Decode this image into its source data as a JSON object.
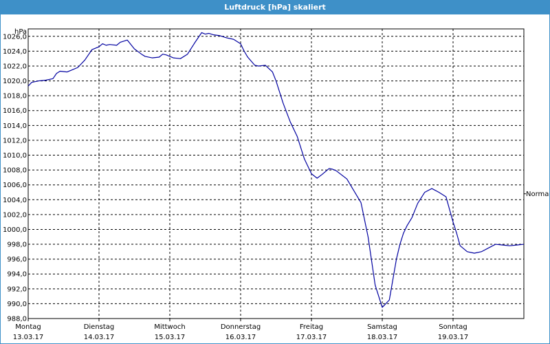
{
  "window": {
    "title": "Luftdruck [hPa] skaliert"
  },
  "colors": {
    "title_bar": "#3e90c8",
    "series_line": "#0000a0",
    "grid": "#000000",
    "background": "#ffffff"
  },
  "chart_data": {
    "type": "line",
    "title": "Luftdruck [hPa] skaliert",
    "ylabel": "hPa",
    "xlabel": "",
    "ylim": [
      988.0,
      1027.0
    ],
    "xlim": [
      0,
      7
    ],
    "y_ticks": [
      1026.0,
      1024.0,
      1022.0,
      1020.0,
      1018.0,
      1016.0,
      1014.0,
      1012.0,
      1010.0,
      1008.0,
      1006.0,
      1004.0,
      1002.0,
      1000.0,
      998.0,
      996.0,
      994.0,
      992.0,
      990.0,
      988.0
    ],
    "y_tick_labels": [
      "1026,0",
      "1024,0",
      "1022,0",
      "1020,0",
      "1018,0",
      "1016,0",
      "1014,0",
      "1012,0",
      "1010,0",
      "1008,0",
      "1006,0",
      "1004,0",
      "1002,0",
      "1000,0",
      "998,0",
      "996,0",
      "994,0",
      "992,0",
      "990,0",
      "988,0"
    ],
    "x_ticks": [
      {
        "day": "Montag",
        "date": "13.03.17"
      },
      {
        "day": "Dienstag",
        "date": "14.03.17"
      },
      {
        "day": "Mittwoch",
        "date": "15.03.17"
      },
      {
        "day": "Donnerstag",
        "date": "16.03.17"
      },
      {
        "day": "Freitag",
        "date": "17.03.17"
      },
      {
        "day": "Samstag",
        "date": "18.03.17"
      },
      {
        "day": "Sonntag",
        "date": "19.03.17"
      }
    ],
    "grid": true,
    "reference_line": {
      "label": "Normal",
      "value": 1004.8
    },
    "series": [
      {
        "x": [
          0.0,
          0.05,
          0.15,
          0.25,
          0.35,
          0.4,
          0.45,
          0.55,
          0.6,
          0.7,
          0.8,
          0.9,
          1.0,
          1.05,
          1.1,
          1.15,
          1.25,
          1.3,
          1.4,
          1.5,
          1.6,
          1.65,
          1.75,
          1.85,
          1.9,
          1.95,
          2.05,
          2.15,
          2.25,
          2.35,
          2.45,
          2.5,
          2.55,
          2.62,
          2.7,
          2.8,
          2.9,
          3.0,
          3.05,
          3.1,
          3.2,
          3.25,
          3.35,
          3.45,
          3.5,
          3.6,
          3.7,
          3.8,
          3.9,
          4.0,
          4.08,
          4.15,
          4.25,
          4.3,
          4.35,
          4.5,
          4.6,
          4.7,
          4.8,
          4.9,
          5.0,
          5.1,
          5.2,
          5.25,
          5.3,
          5.35,
          5.42,
          5.5,
          5.6,
          5.7,
          5.8,
          5.9,
          6.0,
          6.05,
          6.1,
          6.2,
          6.3,
          6.4,
          6.5,
          6.6,
          6.7,
          6.8,
          6.9,
          7.0
        ],
        "y": [
          1019.3,
          1019.8,
          1020.0,
          1020.1,
          1020.3,
          1021.0,
          1021.3,
          1021.2,
          1021.4,
          1021.8,
          1022.8,
          1024.2,
          1024.6,
          1025.0,
          1024.8,
          1024.9,
          1024.8,
          1025.2,
          1025.5,
          1024.3,
          1023.6,
          1023.3,
          1023.1,
          1023.2,
          1023.6,
          1023.5,
          1023.1,
          1023.0,
          1023.6,
          1025.1,
          1026.5,
          1026.3,
          1026.4,
          1026.2,
          1026.1,
          1025.8,
          1025.6,
          1025.0,
          1024.0,
          1023.2,
          1022.1,
          1022.0,
          1022.1,
          1021.2,
          1020.0,
          1017.0,
          1014.5,
          1012.5,
          1009.5,
          1007.5,
          1006.9,
          1007.4,
          1008.2,
          1008.1,
          1007.9,
          1006.8,
          1005.2,
          1003.6,
          999.0,
          992.5,
          989.5,
          990.5,
          996.0,
          998.0,
          999.5,
          1000.5,
          1001.6,
          1003.5,
          1005.0,
          1005.5,
          1005.0,
          1004.4,
          1001.0,
          999.5,
          997.8,
          997.0,
          996.8,
          997.0,
          997.5,
          998.0,
          997.9,
          997.8,
          997.9,
          998.0
        ]
      }
    ]
  }
}
